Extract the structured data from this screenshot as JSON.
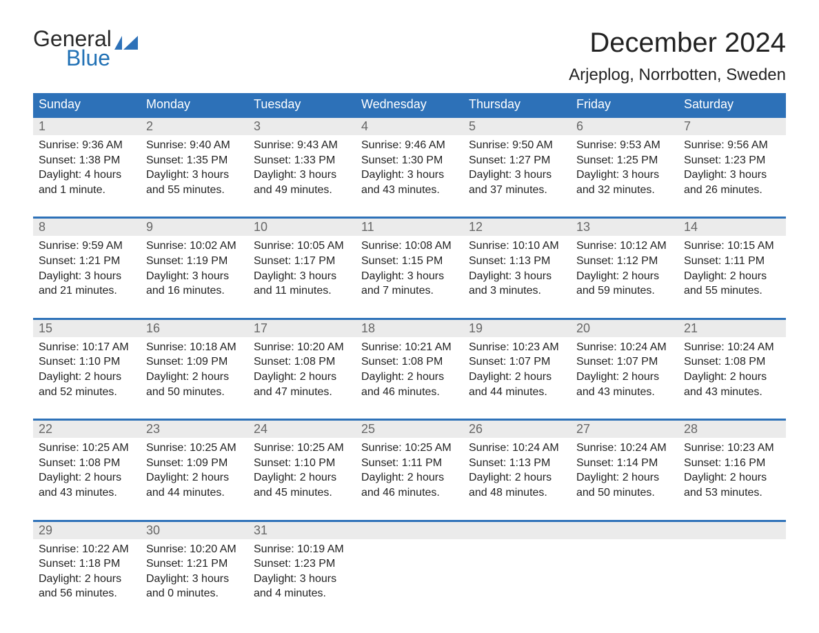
{
  "logo": {
    "word1": "General",
    "word2": "Blue",
    "general_color": "#2a2a2a",
    "blue_color": "#2171b5",
    "flag_color": "#2d71b8"
  },
  "title": {
    "month": "December 2024",
    "location": "Arjeplog, Norrbotten, Sweden",
    "month_fontsize": 40,
    "location_fontsize": 24
  },
  "styling": {
    "header_bg": "#2d71b8",
    "header_text": "#ffffff",
    "daynum_bg": "#ebebeb",
    "daynum_text": "#666666",
    "body_text": "#222222",
    "week_border_color": "#2d71b8",
    "background": "#ffffff",
    "body_fontsize": 16,
    "header_fontsize": 18
  },
  "weekdays": [
    "Sunday",
    "Monday",
    "Tuesday",
    "Wednesday",
    "Thursday",
    "Friday",
    "Saturday"
  ],
  "weeks": [
    {
      "days": [
        {
          "num": "1",
          "sunrise": "Sunrise: 9:36 AM",
          "sunset": "Sunset: 1:38 PM",
          "d1": "Daylight: 4 hours",
          "d2": "and 1 minute."
        },
        {
          "num": "2",
          "sunrise": "Sunrise: 9:40 AM",
          "sunset": "Sunset: 1:35 PM",
          "d1": "Daylight: 3 hours",
          "d2": "and 55 minutes."
        },
        {
          "num": "3",
          "sunrise": "Sunrise: 9:43 AM",
          "sunset": "Sunset: 1:33 PM",
          "d1": "Daylight: 3 hours",
          "d2": "and 49 minutes."
        },
        {
          "num": "4",
          "sunrise": "Sunrise: 9:46 AM",
          "sunset": "Sunset: 1:30 PM",
          "d1": "Daylight: 3 hours",
          "d2": "and 43 minutes."
        },
        {
          "num": "5",
          "sunrise": "Sunrise: 9:50 AM",
          "sunset": "Sunset: 1:27 PM",
          "d1": "Daylight: 3 hours",
          "d2": "and 37 minutes."
        },
        {
          "num": "6",
          "sunrise": "Sunrise: 9:53 AM",
          "sunset": "Sunset: 1:25 PM",
          "d1": "Daylight: 3 hours",
          "d2": "and 32 minutes."
        },
        {
          "num": "7",
          "sunrise": "Sunrise: 9:56 AM",
          "sunset": "Sunset: 1:23 PM",
          "d1": "Daylight: 3 hours",
          "d2": "and 26 minutes."
        }
      ]
    },
    {
      "days": [
        {
          "num": "8",
          "sunrise": "Sunrise: 9:59 AM",
          "sunset": "Sunset: 1:21 PM",
          "d1": "Daylight: 3 hours",
          "d2": "and 21 minutes."
        },
        {
          "num": "9",
          "sunrise": "Sunrise: 10:02 AM",
          "sunset": "Sunset: 1:19 PM",
          "d1": "Daylight: 3 hours",
          "d2": "and 16 minutes."
        },
        {
          "num": "10",
          "sunrise": "Sunrise: 10:05 AM",
          "sunset": "Sunset: 1:17 PM",
          "d1": "Daylight: 3 hours",
          "d2": "and 11 minutes."
        },
        {
          "num": "11",
          "sunrise": "Sunrise: 10:08 AM",
          "sunset": "Sunset: 1:15 PM",
          "d1": "Daylight: 3 hours",
          "d2": "and 7 minutes."
        },
        {
          "num": "12",
          "sunrise": "Sunrise: 10:10 AM",
          "sunset": "Sunset: 1:13 PM",
          "d1": "Daylight: 3 hours",
          "d2": "and 3 minutes."
        },
        {
          "num": "13",
          "sunrise": "Sunrise: 10:12 AM",
          "sunset": "Sunset: 1:12 PM",
          "d1": "Daylight: 2 hours",
          "d2": "and 59 minutes."
        },
        {
          "num": "14",
          "sunrise": "Sunrise: 10:15 AM",
          "sunset": "Sunset: 1:11 PM",
          "d1": "Daylight: 2 hours",
          "d2": "and 55 minutes."
        }
      ]
    },
    {
      "days": [
        {
          "num": "15",
          "sunrise": "Sunrise: 10:17 AM",
          "sunset": "Sunset: 1:10 PM",
          "d1": "Daylight: 2 hours",
          "d2": "and 52 minutes."
        },
        {
          "num": "16",
          "sunrise": "Sunrise: 10:18 AM",
          "sunset": "Sunset: 1:09 PM",
          "d1": "Daylight: 2 hours",
          "d2": "and 50 minutes."
        },
        {
          "num": "17",
          "sunrise": "Sunrise: 10:20 AM",
          "sunset": "Sunset: 1:08 PM",
          "d1": "Daylight: 2 hours",
          "d2": "and 47 minutes."
        },
        {
          "num": "18",
          "sunrise": "Sunrise: 10:21 AM",
          "sunset": "Sunset: 1:08 PM",
          "d1": "Daylight: 2 hours",
          "d2": "and 46 minutes."
        },
        {
          "num": "19",
          "sunrise": "Sunrise: 10:23 AM",
          "sunset": "Sunset: 1:07 PM",
          "d1": "Daylight: 2 hours",
          "d2": "and 44 minutes."
        },
        {
          "num": "20",
          "sunrise": "Sunrise: 10:24 AM",
          "sunset": "Sunset: 1:07 PM",
          "d1": "Daylight: 2 hours",
          "d2": "and 43 minutes."
        },
        {
          "num": "21",
          "sunrise": "Sunrise: 10:24 AM",
          "sunset": "Sunset: 1:08 PM",
          "d1": "Daylight: 2 hours",
          "d2": "and 43 minutes."
        }
      ]
    },
    {
      "days": [
        {
          "num": "22",
          "sunrise": "Sunrise: 10:25 AM",
          "sunset": "Sunset: 1:08 PM",
          "d1": "Daylight: 2 hours",
          "d2": "and 43 minutes."
        },
        {
          "num": "23",
          "sunrise": "Sunrise: 10:25 AM",
          "sunset": "Sunset: 1:09 PM",
          "d1": "Daylight: 2 hours",
          "d2": "and 44 minutes."
        },
        {
          "num": "24",
          "sunrise": "Sunrise: 10:25 AM",
          "sunset": "Sunset: 1:10 PM",
          "d1": "Daylight: 2 hours",
          "d2": "and 45 minutes."
        },
        {
          "num": "25",
          "sunrise": "Sunrise: 10:25 AM",
          "sunset": "Sunset: 1:11 PM",
          "d1": "Daylight: 2 hours",
          "d2": "and 46 minutes."
        },
        {
          "num": "26",
          "sunrise": "Sunrise: 10:24 AM",
          "sunset": "Sunset: 1:13 PM",
          "d1": "Daylight: 2 hours",
          "d2": "and 48 minutes."
        },
        {
          "num": "27",
          "sunrise": "Sunrise: 10:24 AM",
          "sunset": "Sunset: 1:14 PM",
          "d1": "Daylight: 2 hours",
          "d2": "and 50 minutes."
        },
        {
          "num": "28",
          "sunrise": "Sunrise: 10:23 AM",
          "sunset": "Sunset: 1:16 PM",
          "d1": "Daylight: 2 hours",
          "d2": "and 53 minutes."
        }
      ]
    },
    {
      "days": [
        {
          "num": "29",
          "sunrise": "Sunrise: 10:22 AM",
          "sunset": "Sunset: 1:18 PM",
          "d1": "Daylight: 2 hours",
          "d2": "and 56 minutes."
        },
        {
          "num": "30",
          "sunrise": "Sunrise: 10:20 AM",
          "sunset": "Sunset: 1:21 PM",
          "d1": "Daylight: 3 hours",
          "d2": "and 0 minutes."
        },
        {
          "num": "31",
          "sunrise": "Sunrise: 10:19 AM",
          "sunset": "Sunset: 1:23 PM",
          "d1": "Daylight: 3 hours",
          "d2": "and 4 minutes."
        },
        {
          "empty": true
        },
        {
          "empty": true
        },
        {
          "empty": true
        },
        {
          "empty": true
        }
      ]
    }
  ]
}
